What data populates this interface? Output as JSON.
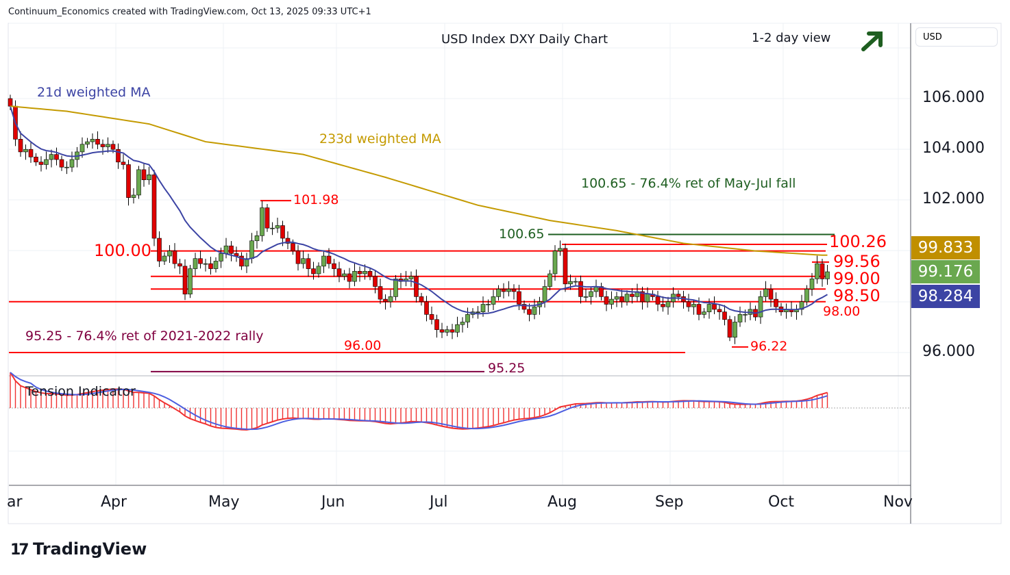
{
  "header": {
    "attribution": "Continuum_Economics created with TradingView.com, Oct 13, 2025 09:33 UTC+1"
  },
  "chart_data": {
    "type": "candlestick",
    "title": "USD Index DXY Daily Chart",
    "view": "1-2 day view",
    "view_direction": "up",
    "currency": "USD",
    "y_ticks": [
      "106.000",
      "104.000",
      "102.000",
      "96.000"
    ],
    "y_tick_values": [
      106,
      104,
      102,
      96
    ],
    "ylim": [
      94.2,
      108
    ],
    "x_ticks": [
      "ar",
      "Apr",
      "May",
      "Jun",
      "Jul",
      "Aug",
      "Sep",
      "Oct",
      "Nov"
    ],
    "closes": [
      105.7,
      104.4,
      103.9,
      104.0,
      103.7,
      103.5,
      103.4,
      103.6,
      103.8,
      103.6,
      103.3,
      103.3,
      103.6,
      103.9,
      104.2,
      104.3,
      104.4,
      104.2,
      104.1,
      104.2,
      104.0,
      103.5,
      103.4,
      102.1,
      102.2,
      103.2,
      102.8,
      103.0,
      100.5,
      99.6,
      99.8,
      100.0,
      99.5,
      99.4,
      98.3,
      99.3,
      99.7,
      99.5,
      99.5,
      99.3,
      99.6,
      99.9,
      100.2,
      99.9,
      99.8,
      99.4,
      99.7,
      100.4,
      100.6,
      101.7,
      100.9,
      100.9,
      101.0,
      100.5,
      100.3,
      100.0,
      99.5,
      99.7,
      99.3,
      99.1,
      99.4,
      99.8,
      99.5,
      99.3,
      99.0,
      99.1,
      98.8,
      99.2,
      99.1,
      99.2,
      99.0,
      98.6,
      98.1,
      98.0,
      98.2,
      98.9,
      98.8,
      98.9,
      99.0,
      98.2,
      98.0,
      97.5,
      97.3,
      96.9,
      96.8,
      96.9,
      96.8,
      97.1,
      97.2,
      97.5,
      97.6,
      97.6,
      97.9,
      97.9,
      98.2,
      98.5,
      98.4,
      98.5,
      98.4,
      97.9,
      97.7,
      97.5,
      97.8,
      98.0,
      98.6,
      99.1,
      100.0,
      100.1,
      98.7,
      98.8,
      98.8,
      98.2,
      98.2,
      98.4,
      98.6,
      98.2,
      97.9,
      98.1,
      98.2,
      98.0,
      98.3,
      98.2,
      98.4,
      98.0,
      98.3,
      98.2,
      97.9,
      97.8,
      98.0,
      98.3,
      98.2,
      98.0,
      97.8,
      97.9,
      97.5,
      97.6,
      97.9,
      97.7,
      97.6,
      97.3,
      96.6,
      97.2,
      97.5,
      97.5,
      97.7,
      97.4,
      98.2,
      98.5,
      98.1,
      97.8,
      97.6,
      97.7,
      97.6,
      97.7,
      98.0,
      98.5,
      98.9,
      99.5,
      98.9,
      99.18
    ],
    "ma233": [
      [
        0,
        105.7
      ],
      [
        11,
        105.5
      ],
      [
        27,
        105.0
      ],
      [
        38,
        104.3
      ],
      [
        57,
        103.8
      ],
      [
        73,
        102.9
      ],
      [
        91,
        101.8
      ],
      [
        105,
        101.2
      ],
      [
        118,
        100.8
      ],
      [
        131,
        100.3
      ],
      [
        145,
        100.0
      ],
      [
        158,
        99.833
      ]
    ],
    "last_values": {
      "ma233": "99.833",
      "close": "99.176",
      "ma21": "98.284"
    },
    "labels": {
      "ma21": "21d weighted MA",
      "ma233": "233d weighted MA",
      "indicator": "Tension Indicator"
    },
    "annotations": {
      "fib1": "100.65 - 76.4% ret of May-Jul fall",
      "fib2": "95.25 - 76.4% ret of 2021-2022 rally",
      "l100_65": "100.65",
      "l100_26": "100.26",
      "l99_56": "99.56",
      "l99_00": "99.00",
      "l98_50": "98.50",
      "l98_00": "98.00",
      "l100_00": "100.00",
      "l101_98": "101.98",
      "l96_00": "96.00",
      "l95_25": "95.25",
      "l96_22": "96.22"
    },
    "colors": {
      "up": "#6aa84f",
      "down": "#e00000",
      "ma21": "#3c44a4",
      "ma233": "#c49a00",
      "level": "#ff0000",
      "green": "#1e5e20",
      "purple": "#800040"
    }
  },
  "footer": {
    "brand": "TradingView"
  }
}
